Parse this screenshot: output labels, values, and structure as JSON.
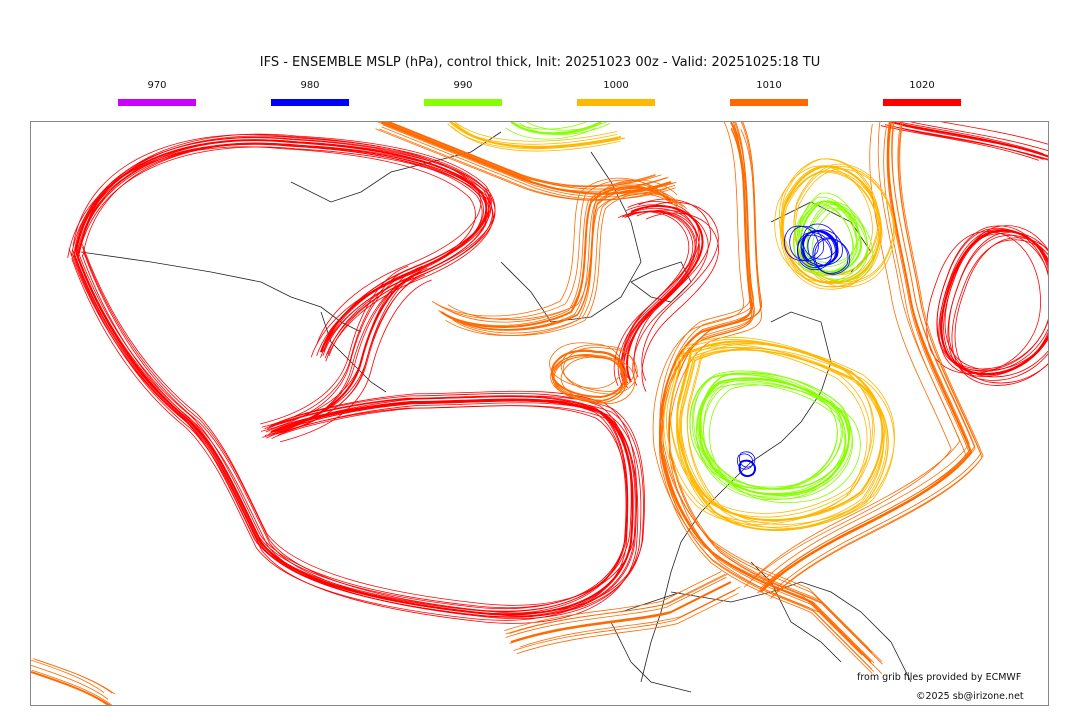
{
  "title": "IFS - ENSEMBLE MSLP (hPa), control thick, Init: 20251023 00z - Valid: 20251025:18 TU",
  "legend": [
    {
      "label": "970",
      "color": "#cc00ff"
    },
    {
      "label": "980",
      "color": "#0000ff"
    },
    {
      "label": "990",
      "color": "#88ff00"
    },
    {
      "label": "1000",
      "color": "#ffb800"
    },
    {
      "label": "1010",
      "color": "#ff6a00"
    },
    {
      "label": "1020",
      "color": "#ff0000"
    }
  ],
  "credits": {
    "source": "from grib files provided by ECMWF",
    "copyright": "©2025 sb@irizone.net"
  }
}
